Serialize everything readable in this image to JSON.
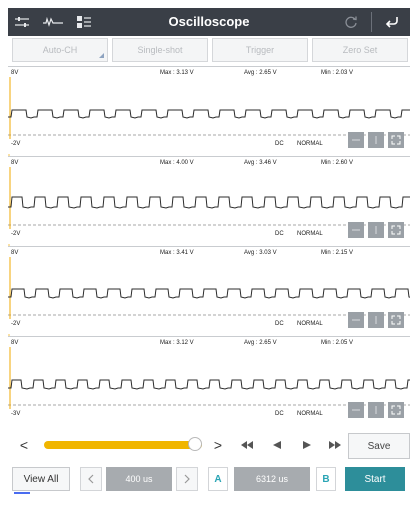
{
  "header": {
    "title": "Oscilloscope"
  },
  "modes": [
    {
      "label": "Auto-CH"
    },
    {
      "label": "Single-shot"
    },
    {
      "label": "Trigger"
    },
    {
      "label": "Zero Set"
    }
  ],
  "channels": [
    {
      "high": "8V",
      "low": "-2V",
      "max": "Max : 3.13 V",
      "avg": "Avg : 2.65 V",
      "min": "Min : 2.03 V",
      "coupling": "DC",
      "mode": "NORMAL"
    },
    {
      "high": "8V",
      "low": "-2V",
      "max": "Max : 4.00 V",
      "avg": "Avg : 3.46 V",
      "min": "Min : 2.60 V",
      "coupling": "DC",
      "mode": "NORMAL"
    },
    {
      "high": "8V",
      "low": "-2V",
      "max": "Max : 3.41 V",
      "avg": "Avg : 3.03 V",
      "min": "Min : 2.15 V",
      "coupling": "DC",
      "mode": "NORMAL"
    },
    {
      "high": "8V",
      "low": "-3V",
      "max": "Max : 3.12 V",
      "avg": "Avg : 2.65 V",
      "min": "Min : 2.05 V",
      "coupling": "DC",
      "mode": "NORMAL"
    }
  ],
  "playback": {
    "prev": "<",
    "next": ">",
    "save": "Save"
  },
  "bottom": {
    "view_all": "View All",
    "time_left": "400 us",
    "marker_a": "A",
    "time_right": "6312 us",
    "marker_b": "B",
    "start": "Start"
  }
}
